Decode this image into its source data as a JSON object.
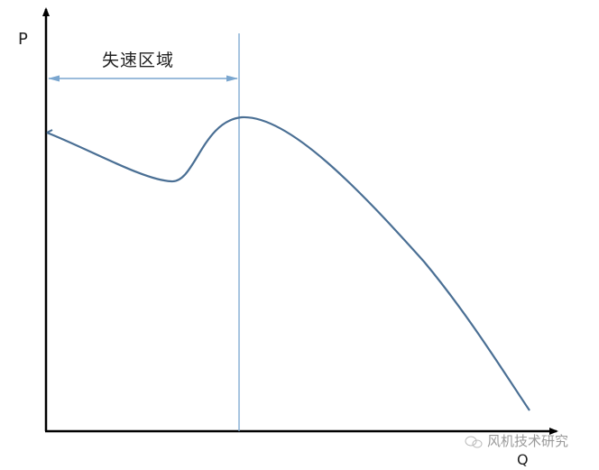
{
  "axes": {
    "y_label": "P",
    "x_label": "Q"
  },
  "annotation": {
    "region_label": "失速区域"
  },
  "watermark": {
    "text": "风机技术研究",
    "icon": "wechat-logo-icon"
  },
  "colors": {
    "curve": "#4a6f94",
    "guide": "#7aa6cf",
    "axis": "#000000"
  }
}
